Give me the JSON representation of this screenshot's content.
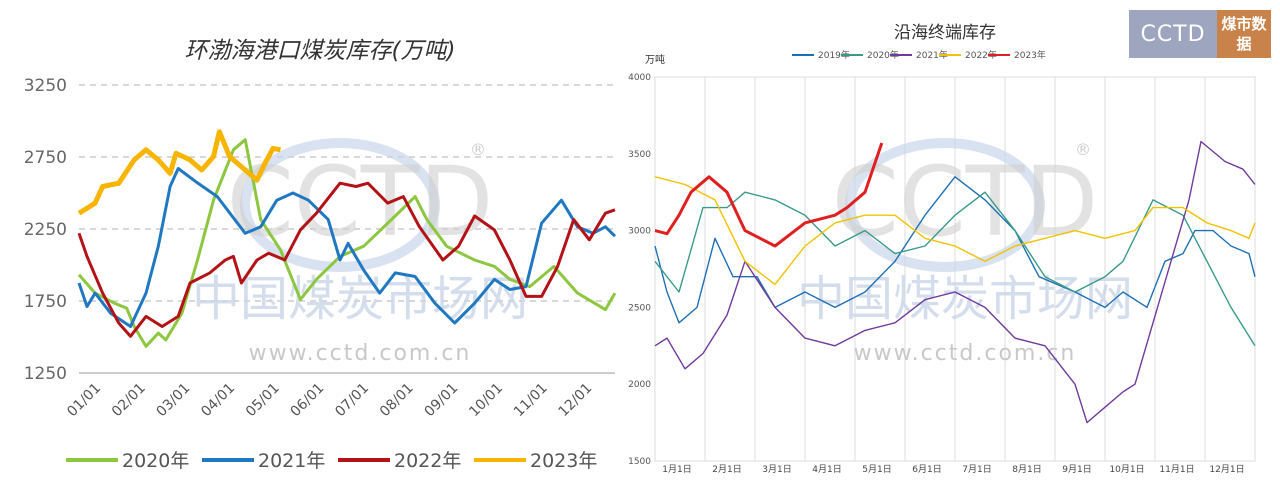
{
  "watermark": {
    "logo": "CCTD",
    "cn": "中国煤炭市场网",
    "url": "www.cctd.com.cn",
    "reg": "®"
  },
  "badge": {
    "logo": "CCTD",
    "text": "煤市数据"
  },
  "chart_data": [
    {
      "type": "line",
      "title": "环渤海港口煤炭库存(万吨)",
      "ylim": [
        1250,
        3250
      ],
      "yticks": [
        1250,
        1750,
        2250,
        2750,
        3250
      ],
      "xticks": [
        "01/01",
        "02/01",
        "03/01",
        "04/01",
        "05/01",
        "06/01",
        "07/01",
        "08/01",
        "09/01",
        "10/01",
        "11/01",
        "12/01"
      ],
      "x_unit": "fraction of year",
      "legend": "bottom",
      "grid": "dashed horizontal",
      "series": [
        {
          "name": "2020年",
          "color": "#8dc63f",
          "points": [
            [
              0,
              1932
            ],
            [
              0.03,
              1805
            ],
            [
              0.066,
              1735
            ],
            [
              0.089,
              1700
            ],
            [
              0.103,
              1573
            ],
            [
              0.125,
              1435
            ],
            [
              0.148,
              1527
            ],
            [
              0.162,
              1480
            ],
            [
              0.192,
              1665
            ],
            [
              0.221,
              2035
            ],
            [
              0.251,
              2450
            ],
            [
              0.288,
              2800
            ],
            [
              0.31,
              2870
            ],
            [
              0.339,
              2315
            ],
            [
              0.376,
              2105
            ],
            [
              0.413,
              1760
            ],
            [
              0.443,
              1900
            ],
            [
              0.487,
              2060
            ],
            [
              0.531,
              2130
            ],
            [
              0.59,
              2340
            ],
            [
              0.627,
              2475
            ],
            [
              0.649,
              2315
            ],
            [
              0.686,
              2130
            ],
            [
              0.738,
              2035
            ],
            [
              0.775,
              1990
            ],
            [
              0.804,
              1900
            ],
            [
              0.841,
              1850
            ],
            [
              0.886,
              1990
            ],
            [
              0.93,
              1805
            ],
            [
              0.982,
              1690
            ],
            [
              1,
              1805
            ]
          ]
        },
        {
          "name": "2021年",
          "color": "#1f78c1",
          "points": [
            [
              0,
              1875
            ],
            [
              0.015,
              1712
            ],
            [
              0.03,
              1805
            ],
            [
              0.059,
              1665
            ],
            [
              0.096,
              1573
            ],
            [
              0.125,
              1805
            ],
            [
              0.148,
              2130
            ],
            [
              0.17,
              2545
            ],
            [
              0.185,
              2670
            ],
            [
              0.221,
              2570
            ],
            [
              0.258,
              2475
            ],
            [
              0.31,
              2220
            ],
            [
              0.339,
              2265
            ],
            [
              0.369,
              2450
            ],
            [
              0.399,
              2500
            ],
            [
              0.428,
              2450
            ],
            [
              0.465,
              2315
            ],
            [
              0.487,
              2035
            ],
            [
              0.502,
              2150
            ],
            [
              0.531,
              1965
            ],
            [
              0.561,
              1805
            ],
            [
              0.59,
              1945
            ],
            [
              0.627,
              1920
            ],
            [
              0.664,
              1735
            ],
            [
              0.701,
              1597
            ],
            [
              0.738,
              1735
            ],
            [
              0.775,
              1900
            ],
            [
              0.804,
              1830
            ],
            [
              0.834,
              1850
            ],
            [
              0.863,
              2290
            ],
            [
              0.9,
              2450
            ],
            [
              0.93,
              2265
            ],
            [
              0.959,
              2220
            ],
            [
              0.982,
              2265
            ],
            [
              1,
              2200
            ]
          ]
        },
        {
          "name": "2022年",
          "color": "#b31217",
          "points": [
            [
              0,
              2220
            ],
            [
              0.015,
              2060
            ],
            [
              0.044,
              1805
            ],
            [
              0.074,
              1597
            ],
            [
              0.096,
              1505
            ],
            [
              0.125,
              1643
            ],
            [
              0.155,
              1573
            ],
            [
              0.185,
              1643
            ],
            [
              0.207,
              1875
            ],
            [
              0.244,
              1945
            ],
            [
              0.273,
              2035
            ],
            [
              0.288,
              2060
            ],
            [
              0.303,
              1875
            ],
            [
              0.332,
              2035
            ],
            [
              0.354,
              2082
            ],
            [
              0.384,
              2035
            ],
            [
              0.413,
              2244
            ],
            [
              0.443,
              2360
            ],
            [
              0.487,
              2568
            ],
            [
              0.517,
              2545
            ],
            [
              0.539,
              2568
            ],
            [
              0.576,
              2430
            ],
            [
              0.605,
              2475
            ],
            [
              0.635,
              2265
            ],
            [
              0.679,
              2035
            ],
            [
              0.708,
              2130
            ],
            [
              0.738,
              2340
            ],
            [
              0.775,
              2244
            ],
            [
              0.804,
              2035
            ],
            [
              0.834,
              1782
            ],
            [
              0.863,
              1782
            ],
            [
              0.893,
              1990
            ],
            [
              0.923,
              2315
            ],
            [
              0.952,
              2175
            ],
            [
              0.982,
              2360
            ],
            [
              1,
              2383
            ]
          ]
        },
        {
          "name": "2023年",
          "color": "#f7b500",
          "points": [
            [
              0,
              2360
            ],
            [
              0.03,
              2430
            ],
            [
              0.044,
              2545
            ],
            [
              0.074,
              2568
            ],
            [
              0.103,
              2730
            ],
            [
              0.125,
              2800
            ],
            [
              0.148,
              2730
            ],
            [
              0.17,
              2637
            ],
            [
              0.181,
              2776
            ],
            [
              0.207,
              2730
            ],
            [
              0.229,
              2660
            ],
            [
              0.251,
              2753
            ],
            [
              0.262,
              2926
            ],
            [
              0.281,
              2753
            ],
            [
              0.31,
              2660
            ],
            [
              0.332,
              2590
            ],
            [
              0.347,
              2707
            ],
            [
              0.362,
              2810
            ],
            [
              0.376,
              2800
            ]
          ]
        }
      ]
    },
    {
      "type": "line",
      "title": "沿海终端库存",
      "ylabel": "万吨",
      "ylim": [
        1500,
        4000
      ],
      "yticks": [
        1500,
        2000,
        2500,
        3000,
        3500,
        4000
      ],
      "xticks": [
        "1月1日",
        "2月1日",
        "3月1日",
        "4月1日",
        "5月1日",
        "6月1日",
        "7月1日",
        "8月1日",
        "9月1日",
        "10月1日",
        "11月1日",
        "12月1日"
      ],
      "x_unit": "fraction of year",
      "legend": "top",
      "grid": "vertical",
      "series": [
        {
          "name": "2019年",
          "color": "#1f6fb5",
          "points": [
            [
              0,
              2900
            ],
            [
              0.02,
              2600
            ],
            [
              0.04,
              2400
            ],
            [
              0.07,
              2500
            ],
            [
              0.1,
              2950
            ],
            [
              0.13,
              2700
            ],
            [
              0.17,
              2700
            ],
            [
              0.2,
              2500
            ],
            [
              0.25,
              2600
            ],
            [
              0.3,
              2500
            ],
            [
              0.35,
              2600
            ],
            [
              0.4,
              2800
            ],
            [
              0.45,
              3100
            ],
            [
              0.5,
              3350
            ],
            [
              0.55,
              3200
            ],
            [
              0.6,
              3000
            ],
            [
              0.64,
              2700
            ],
            [
              0.7,
              2600
            ],
            [
              0.75,
              2500
            ],
            [
              0.78,
              2600
            ],
            [
              0.82,
              2500
            ],
            [
              0.85,
              2800
            ],
            [
              0.88,
              2850
            ],
            [
              0.9,
              3000
            ],
            [
              0.93,
              3000
            ],
            [
              0.96,
              2900
            ],
            [
              0.99,
              2850
            ],
            [
              1,
              2700
            ]
          ]
        },
        {
          "name": "2020年",
          "color": "#3a9a8a",
          "points": [
            [
              0,
              2800
            ],
            [
              0.04,
              2600
            ],
            [
              0.08,
              3150
            ],
            [
              0.12,
              3150
            ],
            [
              0.15,
              3250
            ],
            [
              0.2,
              3200
            ],
            [
              0.25,
              3100
            ],
            [
              0.3,
              2900
            ],
            [
              0.35,
              3000
            ],
            [
              0.4,
              2850
            ],
            [
              0.45,
              2900
            ],
            [
              0.5,
              3100
            ],
            [
              0.55,
              3250
            ],
            [
              0.6,
              3000
            ],
            [
              0.65,
              2700
            ],
            [
              0.7,
              2600
            ],
            [
              0.75,
              2700
            ],
            [
              0.78,
              2800
            ],
            [
              0.83,
              3200
            ],
            [
              0.88,
              3100
            ],
            [
              0.92,
              2800
            ],
            [
              0.96,
              2500
            ],
            [
              1,
              2250
            ]
          ]
        },
        {
          "name": "2021年",
          "color": "#6e3a9c",
          "points": [
            [
              0,
              2250
            ],
            [
              0.02,
              2300
            ],
            [
              0.05,
              2100
            ],
            [
              0.08,
              2200
            ],
            [
              0.12,
              2450
            ],
            [
              0.15,
              2800
            ],
            [
              0.2,
              2500
            ],
            [
              0.25,
              2300
            ],
            [
              0.3,
              2250
            ],
            [
              0.35,
              2350
            ],
            [
              0.4,
              2400
            ],
            [
              0.45,
              2550
            ],
            [
              0.5,
              2600
            ],
            [
              0.55,
              2500
            ],
            [
              0.6,
              2300
            ],
            [
              0.65,
              2250
            ],
            [
              0.7,
              2000
            ],
            [
              0.72,
              1750
            ],
            [
              0.75,
              1850
            ],
            [
              0.78,
              1950
            ],
            [
              0.8,
              2000
            ],
            [
              0.83,
              2400
            ],
            [
              0.86,
              2800
            ],
            [
              0.89,
              3200
            ],
            [
              0.91,
              3580
            ],
            [
              0.95,
              3450
            ],
            [
              0.98,
              3400
            ],
            [
              1,
              3300
            ]
          ]
        },
        {
          "name": "2022年",
          "color": "#f2c200",
          "points": [
            [
              0,
              3350
            ],
            [
              0.05,
              3300
            ],
            [
              0.1,
              3200
            ],
            [
              0.15,
              2800
            ],
            [
              0.2,
              2650
            ],
            [
              0.25,
              2900
            ],
            [
              0.3,
              3050
            ],
            [
              0.35,
              3100
            ],
            [
              0.4,
              3100
            ],
            [
              0.45,
              2950
            ],
            [
              0.5,
              2900
            ],
            [
              0.55,
              2800
            ],
            [
              0.6,
              2900
            ],
            [
              0.65,
              2950
            ],
            [
              0.7,
              3000
            ],
            [
              0.75,
              2950
            ],
            [
              0.8,
              3000
            ],
            [
              0.83,
              3150
            ],
            [
              0.88,
              3150
            ],
            [
              0.92,
              3050
            ],
            [
              0.96,
              3000
            ],
            [
              0.99,
              2950
            ],
            [
              1,
              3050
            ]
          ]
        },
        {
          "name": "2023年",
          "color": "#e02020",
          "points": [
            [
              0,
              3000
            ],
            [
              0.02,
              2980
            ],
            [
              0.04,
              3100
            ],
            [
              0.06,
              3250
            ],
            [
              0.09,
              3350
            ],
            [
              0.12,
              3250
            ],
            [
              0.15,
              3000
            ],
            [
              0.2,
              2900
            ],
            [
              0.25,
              3050
            ],
            [
              0.3,
              3100
            ],
            [
              0.32,
              3150
            ],
            [
              0.35,
              3250
            ],
            [
              0.378,
              3570
            ]
          ]
        }
      ]
    }
  ]
}
